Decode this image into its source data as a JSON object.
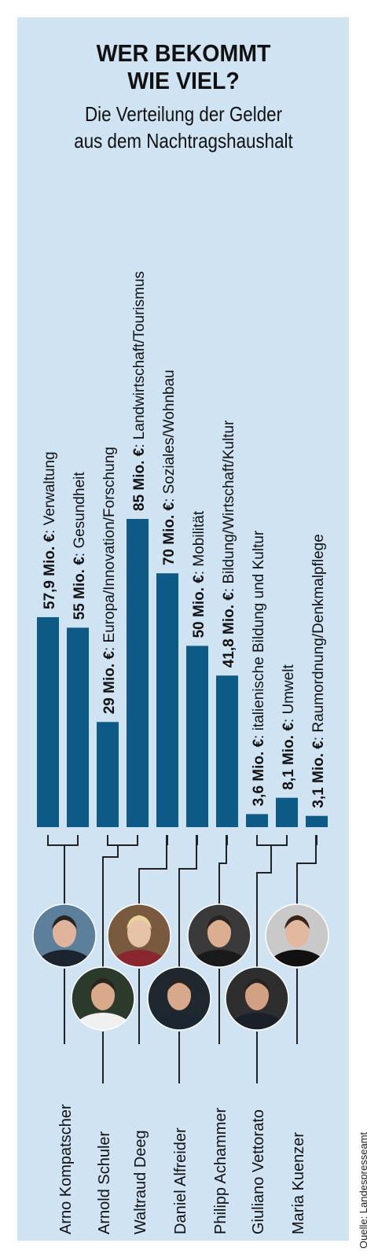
{
  "title_lines": [
    "WER BEKOMMT",
    "WIE VIEL?"
  ],
  "subtitle_lines": [
    "Die Verteilung der Gelder",
    "aus dem Nachtragshaushalt"
  ],
  "source": "Quelle: Landespresseamt",
  "bar_color": "#0d5a86",
  "panel_color": "#cfe3f2",
  "chart_data": {
    "type": "bar",
    "orientation": "vertical",
    "unit": "Mio. €",
    "categories": [
      "Verwaltung",
      "Gesundheit",
      "Europa/Innovation/Forschung",
      "Landwirtschaft/Tourismus",
      "Soziales/Wohnbau",
      "Mobilität",
      "Bildung/Wirtschaft/Kultur",
      "italienische Bildung und Kultur",
      "Umwelt",
      "Raumordnung/Denkmalpflege"
    ],
    "values": [
      57.9,
      55,
      29,
      85,
      70,
      50,
      41.8,
      3.6,
      8.1,
      3.1
    ],
    "value_labels": [
      "57,9 Mio. €",
      "55 Mio. €",
      "29 Mio. €",
      "85 Mio. €",
      "70 Mio. €",
      "50 Mio. €",
      "41,8 Mio. €",
      "3,6 Mio. €",
      "8,1 Mio. €",
      "3,1 Mio. €"
    ],
    "label_separator": ": ",
    "title": "WER BEKOMMT WIE VIEL?",
    "subtitle": "Die Verteilung der Gelder aus dem Nachtragshaushalt",
    "grid": false,
    "ylim": [
      0,
      85
    ]
  },
  "people": [
    {
      "name": "Arno Kompatscher",
      "bars": [
        0,
        1
      ]
    },
    {
      "name": "Arnold Schuler",
      "bars": [
        2,
        3
      ]
    },
    {
      "name": "Waltraud Deeg",
      "bars": [
        4
      ]
    },
    {
      "name": "Daniel Alfreider",
      "bars": [
        5
      ]
    },
    {
      "name": "Philipp Achammer",
      "bars": [
        6
      ]
    },
    {
      "name": "Giuliano Vettorato",
      "bars": [
        7,
        8
      ]
    },
    {
      "name": "Maria Kuenzer",
      "bars": [
        9
      ]
    }
  ]
}
